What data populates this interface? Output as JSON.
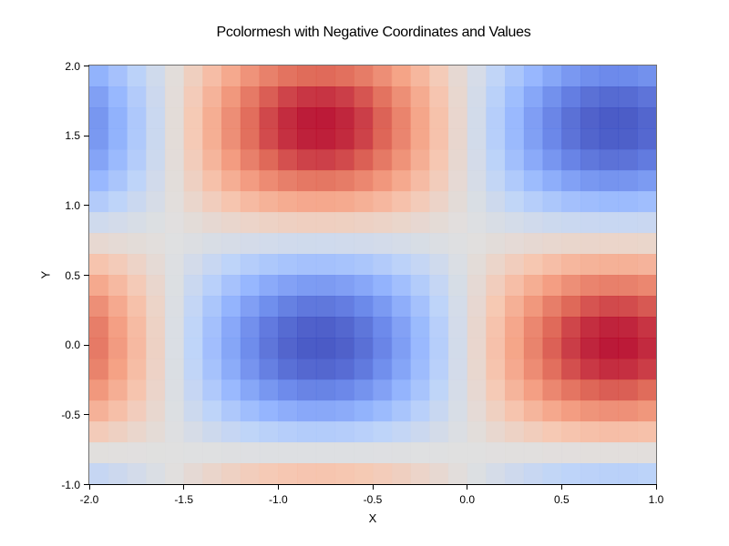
{
  "chart_data": {
    "type": "heatmap",
    "title": "Pcolormesh with Negative Coordinates and Values",
    "xlabel": "X",
    "ylabel": "Y",
    "xlim": [
      -2.0,
      1.0
    ],
    "ylim": [
      -1.0,
      2.0
    ],
    "xticks": [
      "-2.0",
      "-1.5",
      "-1.0",
      "-0.5",
      "0.0",
      "0.5",
      "1.0"
    ],
    "yticks": [
      "-1.0",
      "-0.5",
      "0.0",
      "0.5",
      "1.0",
      "1.5",
      "2.0"
    ],
    "colormap": "coolwarm",
    "vmin": -1.0,
    "vmax": 1.0,
    "grid": false,
    "formula": "Z = sin(2X) * cos(2Y)",
    "x_edges_step": 0.1,
    "y_edges_step": 0.15,
    "x_centers": [
      -1.95,
      -1.85,
      -1.75,
      -1.65,
      -1.55,
      -1.45,
      -1.35,
      -1.25,
      -1.15,
      -1.05,
      -0.95,
      -0.85,
      -0.75,
      -0.65,
      -0.55,
      -0.45,
      -0.35,
      -0.25,
      -0.15,
      -0.05,
      0.05,
      0.15,
      0.25,
      0.35,
      0.45,
      0.55,
      0.65,
      0.75,
      0.85,
      0.95
    ],
    "y_centers_top_to_bottom": [
      1.925,
      1.775,
      1.625,
      1.475,
      1.325,
      1.175,
      1.025,
      0.875,
      0.725,
      0.575,
      0.425,
      0.275,
      0.125,
      -0.025,
      -0.175,
      -0.325,
      -0.475,
      -0.625,
      -0.775,
      -0.925
    ],
    "sin2x": [
      0.688,
      0.53,
      0.351,
      0.158,
      -0.042,
      -0.239,
      -0.427,
      -0.598,
      -0.746,
      -0.863,
      -0.946,
      -0.992,
      -0.997,
      -0.964,
      -0.891,
      -0.783,
      -0.644,
      -0.479,
      -0.296,
      -0.1,
      0.1,
      0.296,
      0.479,
      0.644,
      0.783,
      0.891,
      0.964,
      0.997,
      0.992,
      0.946
    ],
    "cos2y": [
      -0.76,
      -0.918,
      -0.994,
      -0.982,
      -0.882,
      -0.703,
      -0.461,
      -0.178,
      0.121,
      0.408,
      0.66,
      0.853,
      0.969,
      0.999,
      0.939,
      0.796,
      0.585,
      0.315,
      0.02,
      -0.274
    ]
  }
}
